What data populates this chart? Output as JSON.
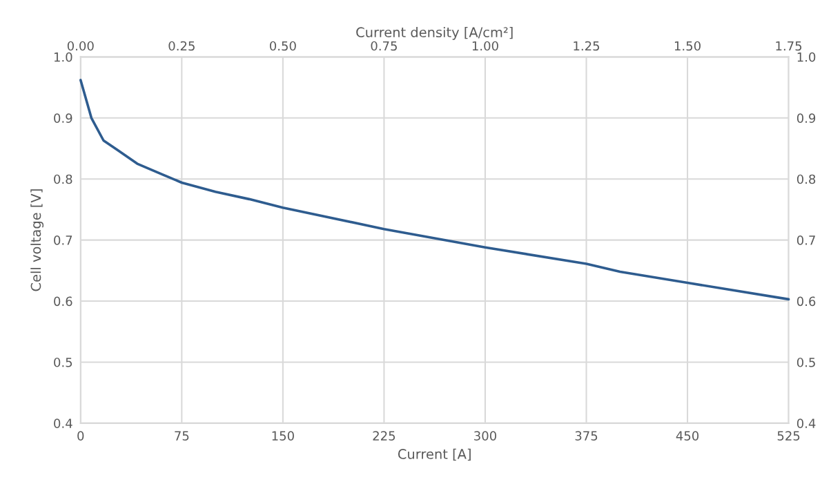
{
  "chart_data": {
    "type": "line",
    "xlabel": "Current [A]",
    "ylabel": "Cell voltage [V]",
    "x2label": "Current density [A/cm²]",
    "xlim": [
      0,
      525
    ],
    "xticks": [
      0,
      75,
      150,
      225,
      300,
      375,
      450,
      525
    ],
    "x2lim": [
      0,
      1.75
    ],
    "x2ticks": [
      {
        "value": 0,
        "label": "0.00"
      },
      {
        "value": 0.25,
        "label": "0.25"
      },
      {
        "value": 0.5,
        "label": "0.50"
      },
      {
        "value": 0.75,
        "label": "0.75"
      },
      {
        "value": 1,
        "label": "1.00"
      },
      {
        "value": 1.25,
        "label": "1.25"
      },
      {
        "value": 1.5,
        "label": "1.50"
      },
      {
        "value": 1.75,
        "label": "1.75"
      }
    ],
    "ylim": [
      0.4,
      1.0
    ],
    "yticks": [
      {
        "value": 0.4,
        "label": "0.4"
      },
      {
        "value": 0.5,
        "label": "0.5"
      },
      {
        "value": 0.6,
        "label": "0.6"
      },
      {
        "value": 0.7,
        "label": "0.7"
      },
      {
        "value": 0.8,
        "label": "0.8"
      },
      {
        "value": 0.9,
        "label": "0.9"
      },
      {
        "value": 1.0,
        "label": "1.0"
      }
    ],
    "y2lim": [
      0.4,
      1.0
    ],
    "y2ticks": [
      {
        "value": 0.4,
        "label": "0.4"
      },
      {
        "value": 0.5,
        "label": "0.5"
      },
      {
        "value": 0.6,
        "label": "0.6"
      },
      {
        "value": 0.7,
        "label": "0.7"
      },
      {
        "value": 0.8,
        "label": "0.8"
      },
      {
        "value": 0.9,
        "label": "0.9"
      },
      {
        "value": 1.0,
        "label": "1.0"
      }
    ],
    "grid": true,
    "marker": "none",
    "line_style": "solid",
    "series": [
      {
        "color": "#2e5c8f",
        "x": [
          0,
          8,
          17,
          27,
          42,
          60,
          75,
          100,
          125,
          150,
          225,
          300,
          375,
          400,
          450,
          525
        ],
        "values": [
          0.962,
          0.9,
          0.863,
          0.848,
          0.825,
          0.808,
          0.794,
          0.779,
          0.767,
          0.753,
          0.718,
          0.688,
          0.661,
          0.648,
          0.63,
          0.603
        ]
      }
    ]
  }
}
